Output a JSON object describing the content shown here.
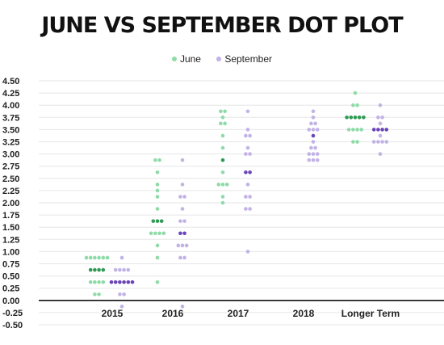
{
  "chart_data": {
    "type": "scatter",
    "title": "JUNE VS SEPTEMBER DOT PLOT",
    "xlabel": "",
    "ylabel": "",
    "ylim": [
      -0.5,
      4.5
    ],
    "yticks": [
      "4.50",
      "4.25",
      "4.00",
      "3.75",
      "3.50",
      "3.25",
      "3.00",
      "2.75",
      "2.50",
      "2.25",
      "2.00",
      "1.75",
      "1.50",
      "1.25",
      "1.00",
      "0.75",
      "0.50",
      "0.25",
      "0.00",
      "-0.25",
      "-0.50"
    ],
    "grid": true,
    "legend_position": "top-center",
    "categories": [
      "2015",
      "2016",
      "2017",
      "2018",
      "Longer Term"
    ],
    "colors": {
      "june": "#8fdba8",
      "june_median": "#2e9a54",
      "september": "#c2b2e6",
      "september_median": "#6b45b8"
    },
    "series": [
      {
        "name": "June",
        "values": [
          [
            [
              0.875,
              6
            ],
            [
              0.625,
              4
            ],
            [
              0.375,
              4
            ],
            [
              0.125,
              2
            ]
          ],
          [
            [
              2.875,
              2
            ],
            [
              2.625,
              1
            ],
            [
              2.375,
              1
            ],
            [
              2.25,
              1
            ],
            [
              2.125,
              1
            ],
            [
              1.875,
              1
            ],
            [
              1.625,
              3
            ],
            [
              1.375,
              4
            ],
            [
              1.125,
              1
            ],
            [
              0.875,
              1
            ],
            [
              0.375,
              1
            ]
          ],
          [
            [
              3.875,
              2
            ],
            [
              3.75,
              1
            ],
            [
              3.625,
              2
            ],
            [
              3.375,
              1
            ],
            [
              3.125,
              1
            ],
            [
              2.875,
              1
            ],
            [
              2.625,
              1
            ],
            [
              2.375,
              3
            ],
            [
              2.125,
              1
            ],
            [
              2.0,
              1
            ]
          ],
          [],
          [
            [
              4.25,
              1
            ],
            [
              4.0,
              2
            ],
            [
              3.75,
              5
            ],
            [
              3.5,
              4
            ],
            [
              3.25,
              2
            ]
          ]
        ]
      },
      {
        "name": "September",
        "values": [
          [
            [
              0.875,
              1
            ],
            [
              0.625,
              4
            ],
            [
              0.375,
              6
            ],
            [
              0.125,
              2
            ],
            [
              -0.125,
              1
            ]
          ],
          [
            [
              2.875,
              1
            ],
            [
              2.375,
              1
            ],
            [
              2.125,
              2
            ],
            [
              1.875,
              1
            ],
            [
              1.625,
              2
            ],
            [
              1.375,
              2
            ],
            [
              1.125,
              3
            ],
            [
              0.875,
              2
            ],
            [
              -0.125,
              1
            ]
          ],
          [
            [
              3.875,
              1
            ],
            [
              3.5,
              1
            ],
            [
              3.375,
              2
            ],
            [
              3.125,
              1
            ],
            [
              3.0,
              2
            ],
            [
              2.625,
              2
            ],
            [
              2.375,
              1
            ],
            [
              2.125,
              2
            ],
            [
              1.875,
              2
            ],
            [
              1.0,
              1
            ]
          ],
          [
            [
              3.875,
              1
            ],
            [
              3.75,
              1
            ],
            [
              3.625,
              2
            ],
            [
              3.5,
              3
            ],
            [
              3.375,
              1
            ],
            [
              3.25,
              1
            ],
            [
              3.125,
              2
            ],
            [
              3.0,
              3
            ],
            [
              2.875,
              3
            ]
          ],
          [
            [
              4.0,
              1
            ],
            [
              3.75,
              2
            ],
            [
              3.625,
              1
            ],
            [
              3.5,
              4
            ],
            [
              3.375,
              1
            ],
            [
              3.25,
              4
            ],
            [
              3.0,
              1
            ]
          ]
        ],
        "medians": [
          0.375,
          1.375,
          2.625,
          3.375,
          3.5
        ]
      }
    ],
    "june_medians": [
      0.625,
      1.625,
      2.875,
      null,
      3.75
    ]
  },
  "legend": {
    "june_label": "June",
    "september_label": "September"
  }
}
